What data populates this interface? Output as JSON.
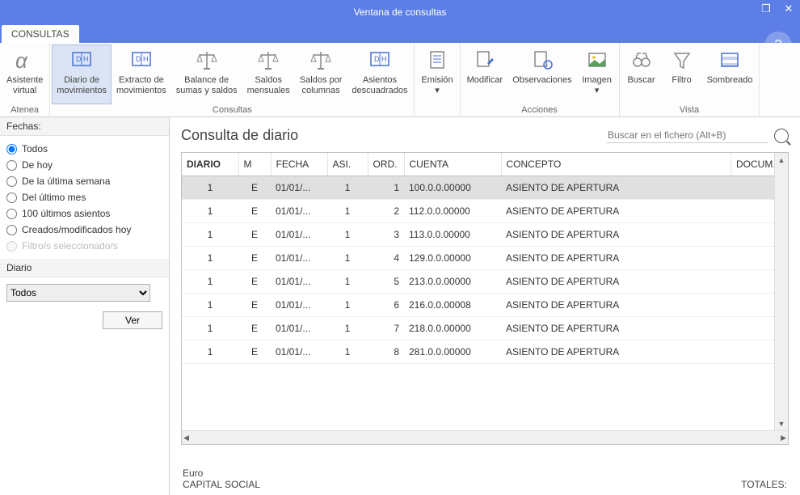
{
  "window": {
    "title": "Ventana de consultas"
  },
  "tabs": {
    "main": "CONSULTAS"
  },
  "ribbon": {
    "groups": [
      {
        "label": "Atenea",
        "buttons": [
          {
            "name": "asistente-virtual",
            "line1": "Asistente",
            "line2": "virtual",
            "icon": "alpha"
          }
        ]
      },
      {
        "label": "Consultas",
        "buttons": [
          {
            "name": "diario-movimientos",
            "line1": "Diario de",
            "line2": "movimientos",
            "icon": "dh1",
            "active": true
          },
          {
            "name": "extracto-movimientos",
            "line1": "Extracto de",
            "line2": "movimientos",
            "icon": "dh2"
          },
          {
            "name": "balance-sumas-saldos",
            "line1": "Balance de",
            "line2": "sumas y saldos",
            "icon": "scale1"
          },
          {
            "name": "saldos-mensuales",
            "line1": "Saldos",
            "line2": "mensuales",
            "icon": "scale2"
          },
          {
            "name": "saldos-columnas",
            "line1": "Saldos por",
            "line2": "columnas",
            "icon": "scale3"
          },
          {
            "name": "asientos-descuadrados",
            "line1": "Asientos",
            "line2": "descuadrados",
            "icon": "dh3"
          }
        ]
      },
      {
        "label": "",
        "buttons": [
          {
            "name": "emision",
            "line1": "Emisión",
            "line2": "▾",
            "icon": "doc-lines"
          }
        ]
      },
      {
        "label": "Acciones",
        "buttons": [
          {
            "name": "modificar",
            "line1": "Modificar",
            "line2": "",
            "icon": "doc-pencil"
          },
          {
            "name": "observaciones",
            "line1": "Observaciones",
            "line2": "",
            "icon": "doc-info"
          },
          {
            "name": "imagen",
            "line1": "Imagen",
            "line2": "▾",
            "icon": "image"
          }
        ]
      },
      {
        "label": "Vista",
        "buttons": [
          {
            "name": "buscar",
            "line1": "Buscar",
            "line2": "",
            "icon": "binoc"
          },
          {
            "name": "filtro",
            "line1": "Filtro",
            "line2": "",
            "icon": "funnel"
          },
          {
            "name": "sombreado",
            "line1": "Sombreado",
            "line2": "",
            "icon": "shade"
          }
        ]
      }
    ]
  },
  "sidebar": {
    "fechas_label": "Fechas:",
    "radios": [
      {
        "label": "Todos",
        "checked": true
      },
      {
        "label": "De hoy",
        "checked": false
      },
      {
        "label": "De la última semana",
        "checked": false
      },
      {
        "label": "Del último mes",
        "checked": false
      },
      {
        "label": "100 últimos asientos",
        "checked": false
      },
      {
        "label": "Creados/modificados hoy",
        "checked": false
      },
      {
        "label": "Filtro/s seleccionado/s",
        "checked": false,
        "disabled": true
      }
    ],
    "diario_label": "Diario",
    "diario_value": "Todos",
    "ver_label": "Ver"
  },
  "content": {
    "title": "Consulta de diario",
    "search_placeholder": "Buscar en el fichero (Alt+B)"
  },
  "table": {
    "columns": [
      "DIARIO",
      "M",
      "FECHA",
      "ASI.",
      "ORD.",
      "CUENTA",
      "CONCEPTO",
      "DOCUM."
    ],
    "rows": [
      {
        "diario": "1",
        "m": "E",
        "fecha": "01/01/...",
        "asi": "1",
        "ord": "1",
        "cuenta": "100.0.0.00000",
        "concepto": "ASIENTO DE APERTURA",
        "docum": "",
        "selected": true
      },
      {
        "diario": "1",
        "m": "E",
        "fecha": "01/01/...",
        "asi": "1",
        "ord": "2",
        "cuenta": "112.0.0.00000",
        "concepto": "ASIENTO DE APERTURA",
        "docum": ""
      },
      {
        "diario": "1",
        "m": "E",
        "fecha": "01/01/...",
        "asi": "1",
        "ord": "3",
        "cuenta": "113.0.0.00000",
        "concepto": "ASIENTO DE APERTURA",
        "docum": ""
      },
      {
        "diario": "1",
        "m": "E",
        "fecha": "01/01/...",
        "asi": "1",
        "ord": "4",
        "cuenta": "129.0.0.00000",
        "concepto": "ASIENTO DE APERTURA",
        "docum": ""
      },
      {
        "diario": "1",
        "m": "E",
        "fecha": "01/01/...",
        "asi": "1",
        "ord": "5",
        "cuenta": "213.0.0.00000",
        "concepto": "ASIENTO DE APERTURA",
        "docum": ""
      },
      {
        "diario": "1",
        "m": "E",
        "fecha": "01/01/...",
        "asi": "1",
        "ord": "6",
        "cuenta": "216.0.0.00008",
        "concepto": "ASIENTO DE APERTURA",
        "docum": ""
      },
      {
        "diario": "1",
        "m": "E",
        "fecha": "01/01/...",
        "asi": "1",
        "ord": "7",
        "cuenta": "218.0.0.00000",
        "concepto": "ASIENTO DE APERTURA",
        "docum": ""
      },
      {
        "diario": "1",
        "m": "E",
        "fecha": "01/01/...",
        "asi": "1",
        "ord": "8",
        "cuenta": "281.0.0.00000",
        "concepto": "ASIENTO DE APERTURA",
        "docum": ""
      }
    ]
  },
  "footer": {
    "currency": "Euro",
    "entity": "CAPITAL SOCIAL",
    "totales": "TOTALES:"
  },
  "colors": {
    "accent": "#5c7ee6",
    "ribbon_active_bg": "#dbe4f5",
    "ribbon_active_border": "#aac0e6"
  }
}
